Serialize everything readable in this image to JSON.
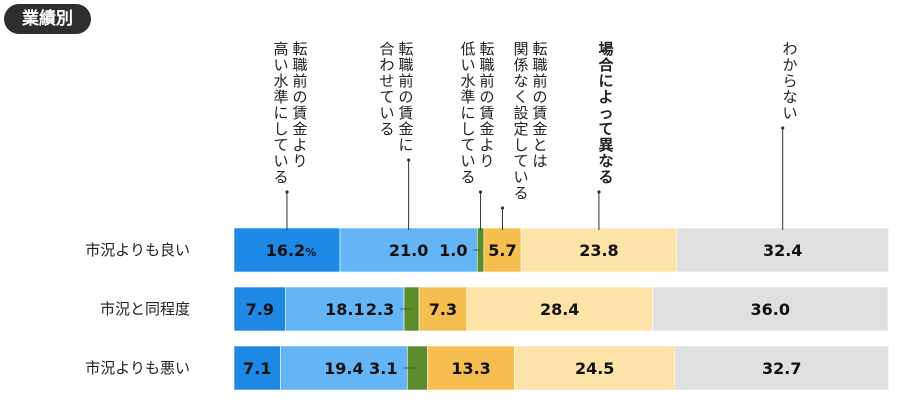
{
  "badge": "業績別",
  "chart_data": {
    "type": "bar",
    "orientation": "horizontal-stacked-100",
    "title": "業績別",
    "categories": [
      "市況よりも良い",
      "市況と同程度",
      "市況よりも悪い"
    ],
    "series": [
      {
        "name": "転職前の賃金より高い水準にしている",
        "lines": [
          "転職前の賃金より",
          "高い水準にしている"
        ],
        "bold": false,
        "color": "#1e88e5",
        "values": [
          16.2,
          7.9,
          7.1
        ]
      },
      {
        "name": "転職前の賃金に合わせている",
        "lines": [
          "転職前の賃金に",
          "合わせている"
        ],
        "bold": false,
        "color": "#64b5f6",
        "values": [
          21.0,
          18.1,
          19.4
        ]
      },
      {
        "name": "転職前の賃金より低い水準にしている",
        "lines": [
          "転職前の賃金より",
          "低い水準にしている"
        ],
        "bold": false,
        "color": "#5b8c2a",
        "values": [
          1.0,
          2.3,
          3.1
        ]
      },
      {
        "name": "転職前の賃金とは関係なく設定している",
        "lines": [
          "転職前の賃金とは",
          "関係なく設定している"
        ],
        "bold": false,
        "color": "#f6bd4f",
        "values": [
          5.7,
          7.3,
          13.3
        ]
      },
      {
        "name": "場合によって異なる",
        "lines": [
          "場合によって異なる"
        ],
        "bold": true,
        "color": "#fde3a7",
        "values": [
          23.8,
          28.4,
          24.5
        ]
      },
      {
        "name": "わからない",
        "lines": [
          "わからない"
        ],
        "bold": false,
        "color": "#e0e0e0",
        "values": [
          32.4,
          36.0,
          32.7
        ]
      }
    ],
    "display_labels": [
      [
        "16.2",
        "21.0",
        "1.0",
        "5.7",
        "23.8",
        "32.4"
      ],
      [
        "7.9",
        "18.1",
        "2.3",
        "7.3",
        "28.4",
        "36.0"
      ],
      [
        "7.1",
        "19.4",
        "3.1",
        "13.3",
        "24.5",
        "32.7"
      ]
    ],
    "percent_sign": "%",
    "xlim": [
      0,
      100
    ],
    "legend": "vertical callout labels above first bar"
  }
}
